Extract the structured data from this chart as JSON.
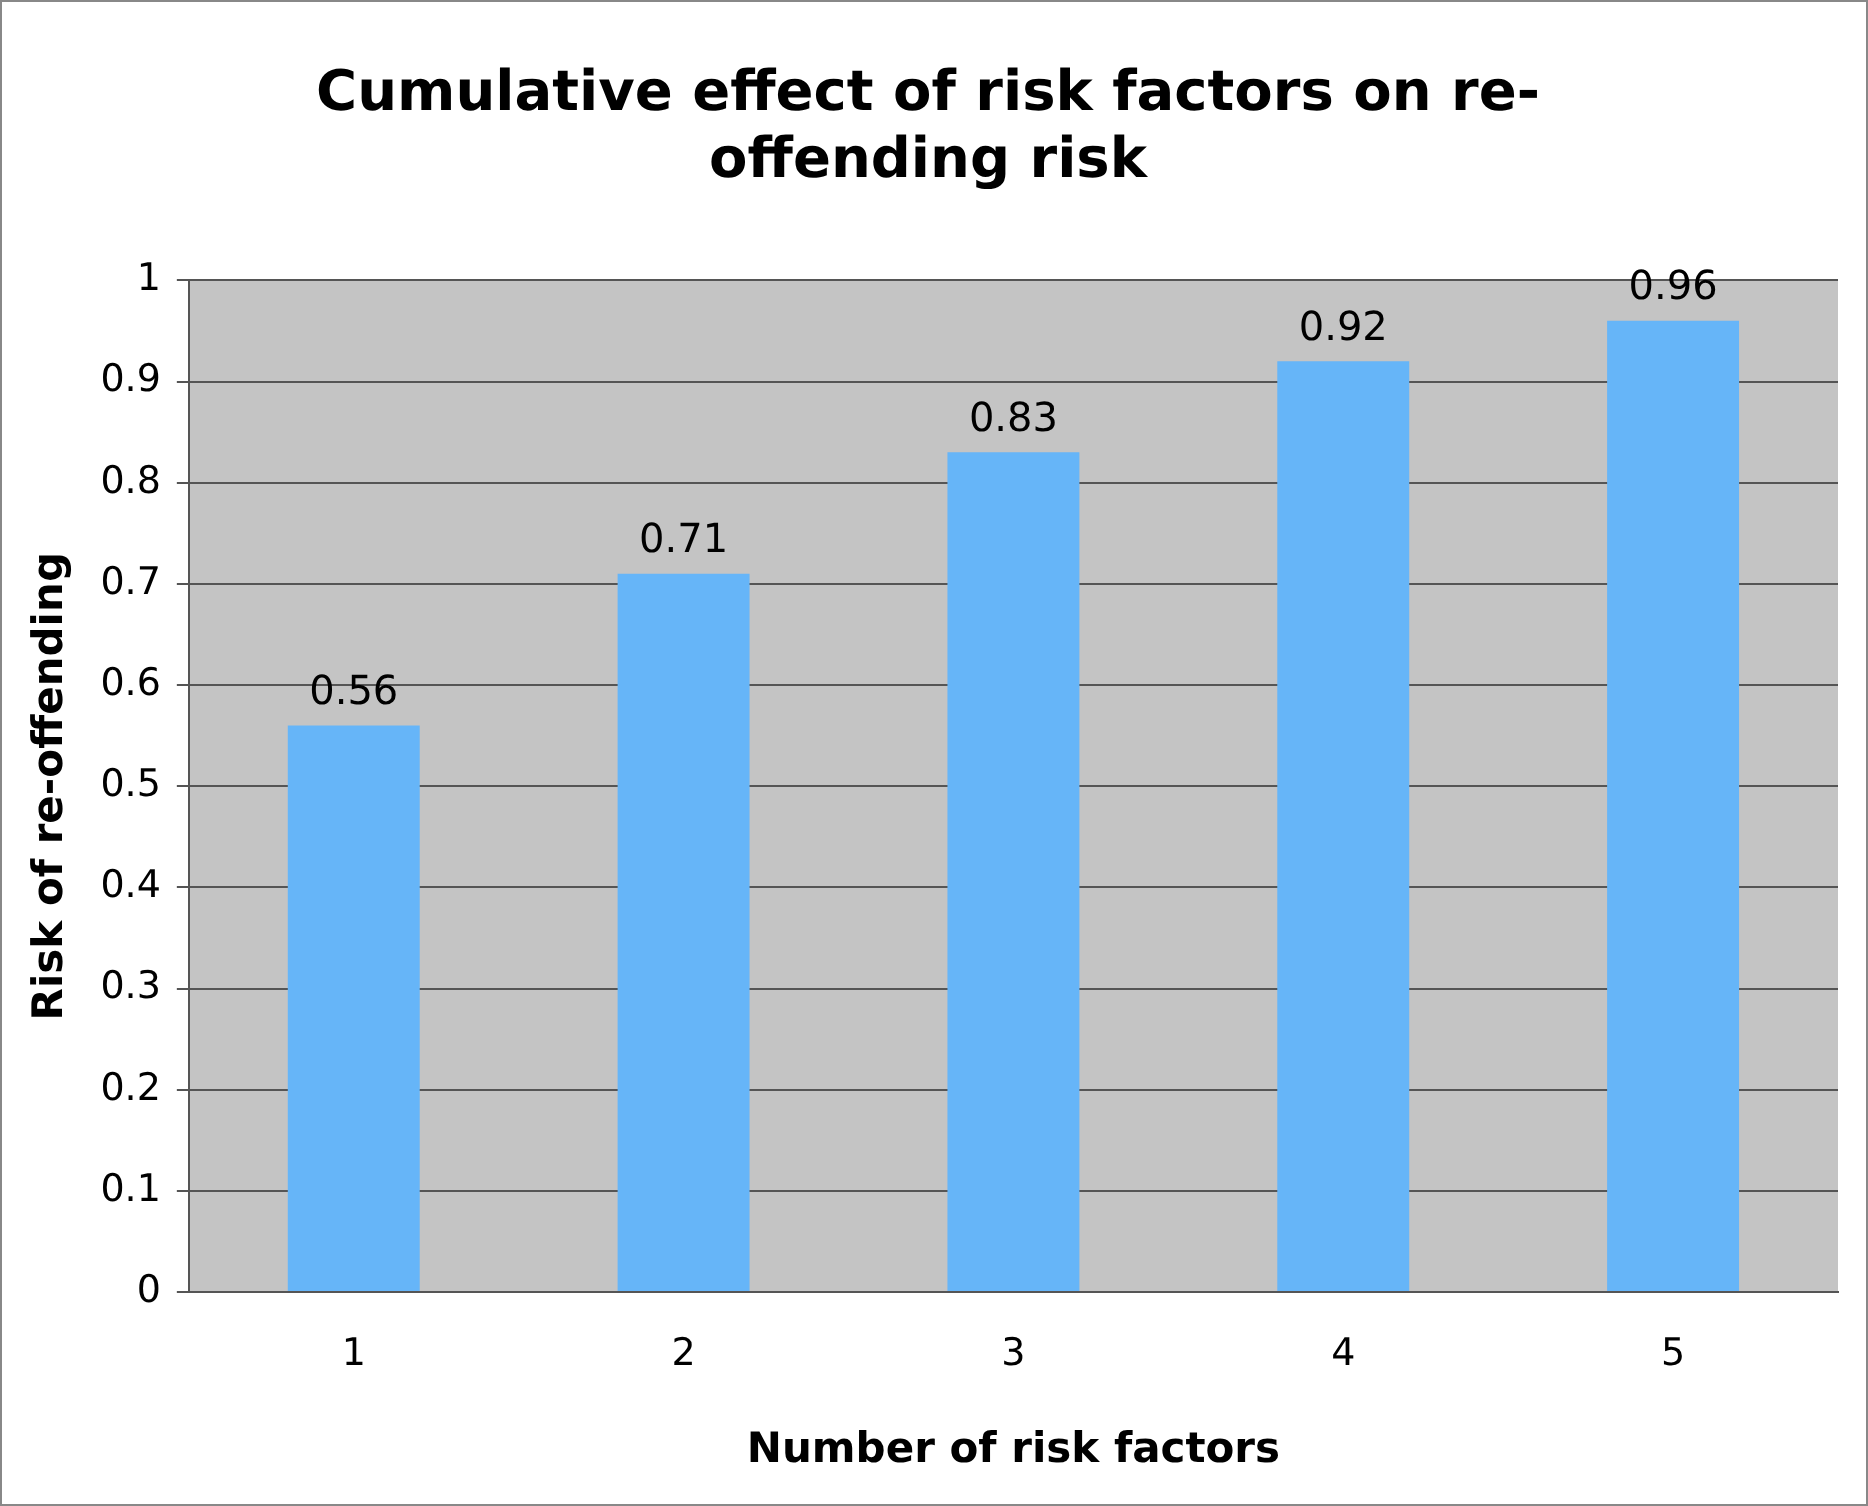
{
  "chart_data": {
    "type": "bar",
    "title": "Cumulative effect of risk factors on re-offending risk",
    "xlabel": "Number of risk factors",
    "ylabel": "Risk of re-offending",
    "categories": [
      "1",
      "2",
      "3",
      "4",
      "5"
    ],
    "values": [
      0.56,
      0.71,
      0.83,
      0.92,
      0.96
    ],
    "color": "#66b5f8",
    "ylim": [
      0,
      1
    ],
    "yticks": [
      0,
      0.1,
      0.2,
      0.3,
      0.4,
      0.5,
      0.6,
      0.7,
      0.8,
      0.9,
      1
    ],
    "grid": "y",
    "data_labels": true
  }
}
